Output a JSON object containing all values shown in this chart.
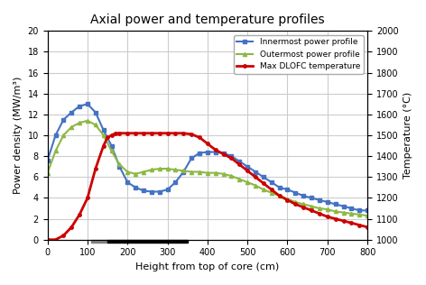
{
  "title": "Axial power and temperature profiles",
  "xlabel": "Height from top of core (cm)",
  "ylabel_left": "Power density (MW/m³)",
  "ylabel_right": "Temperature (°C)",
  "xlim": [
    0,
    800
  ],
  "ylim_left": [
    0,
    20
  ],
  "ylim_right": [
    1000,
    2000
  ],
  "legend_entries": [
    "Innermost power profile",
    "Outermost power profile",
    "Max DLOFC temperature"
  ],
  "line_colors": [
    "#4472c4",
    "#8db843",
    "#cc0000"
  ],
  "grid_color": "#cccccc",
  "bar_x_start": 110,
  "bar_x_end": 350,
  "bar_y": 0,
  "innermost_x": [
    0,
    20,
    40,
    60,
    80,
    100,
    120,
    140,
    160,
    180,
    200,
    220,
    240,
    260,
    280,
    300,
    320,
    340,
    360,
    380,
    400,
    420,
    440,
    460,
    480,
    500,
    520,
    540,
    560,
    580,
    600,
    620,
    640,
    660,
    680,
    700,
    720,
    740,
    760,
    780,
    800
  ],
  "innermost_y": [
    7.6,
    10.0,
    11.5,
    12.2,
    12.8,
    13.0,
    12.2,
    10.5,
    9.0,
    7.0,
    5.5,
    5.0,
    4.7,
    4.6,
    4.6,
    4.8,
    5.5,
    6.5,
    7.8,
    8.3,
    8.4,
    8.4,
    8.3,
    8.0,
    7.5,
    7.0,
    6.5,
    6.0,
    5.5,
    5.0,
    4.8,
    4.5,
    4.2,
    4.0,
    3.8,
    3.6,
    3.4,
    3.2,
    3.0,
    2.8,
    2.8
  ],
  "outermost_x": [
    0,
    20,
    40,
    60,
    80,
    100,
    120,
    140,
    160,
    180,
    200,
    220,
    240,
    260,
    280,
    300,
    320,
    340,
    360,
    380,
    400,
    420,
    440,
    460,
    480,
    500,
    520,
    540,
    560,
    580,
    600,
    620,
    640,
    660,
    680,
    700,
    720,
    740,
    760,
    780,
    800
  ],
  "outermost_y": [
    6.4,
    8.5,
    10.0,
    10.8,
    11.2,
    11.4,
    11.0,
    10.0,
    8.5,
    7.2,
    6.5,
    6.3,
    6.5,
    6.7,
    6.8,
    6.8,
    6.7,
    6.6,
    6.5,
    6.5,
    6.4,
    6.4,
    6.3,
    6.1,
    5.8,
    5.5,
    5.2,
    4.8,
    4.5,
    4.2,
    3.9,
    3.6,
    3.4,
    3.2,
    3.0,
    2.9,
    2.7,
    2.6,
    2.5,
    2.4,
    2.3
  ],
  "temperature_x": [
    0,
    20,
    40,
    60,
    80,
    100,
    120,
    140,
    150,
    160,
    170,
    180,
    200,
    220,
    240,
    260,
    280,
    300,
    320,
    340,
    360,
    380,
    400,
    420,
    440,
    460,
    480,
    500,
    520,
    540,
    560,
    580,
    600,
    620,
    640,
    660,
    680,
    700,
    720,
    740,
    760,
    780,
    800
  ],
  "temperature_y_raw": [
    1000,
    1000,
    1020,
    1060,
    1120,
    1200,
    1340,
    1450,
    1490,
    1500,
    1510,
    1510,
    1510,
    1510,
    1510,
    1510,
    1510,
    1510,
    1510,
    1510,
    1505,
    1490,
    1460,
    1430,
    1410,
    1390,
    1360,
    1330,
    1300,
    1270,
    1240,
    1210,
    1190,
    1170,
    1155,
    1140,
    1125,
    1110,
    1100,
    1090,
    1080,
    1070,
    1060
  ]
}
